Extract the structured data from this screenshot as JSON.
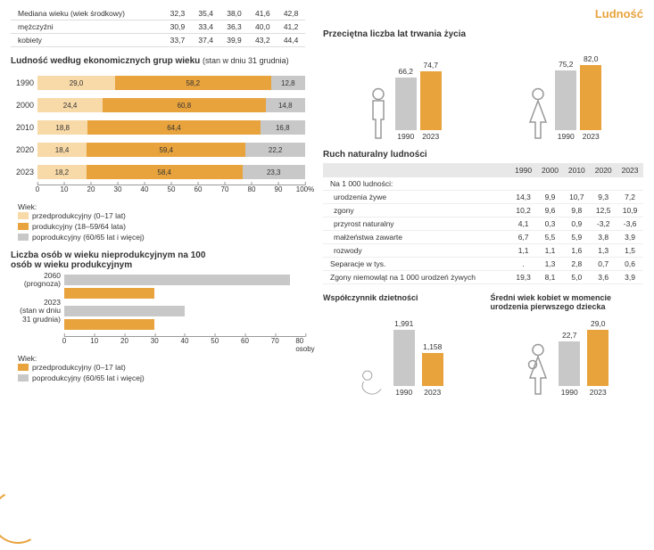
{
  "colors": {
    "orange": "#e8a33d",
    "light_orange": "#f8d9a8",
    "grey": "#c8c8c8",
    "dark_grey": "#999999",
    "text": "#333333"
  },
  "page_title": "Ludność",
  "median_table": {
    "rows": [
      {
        "label": "Mediana wieku (wiek środkowy)",
        "vals": [
          "32,3",
          "35,4",
          "38,0",
          "41,6",
          "42,8"
        ]
      },
      {
        "label": "mężczyźni",
        "vals": [
          "30,9",
          "33,4",
          "36,3",
          "40,0",
          "41,2"
        ]
      },
      {
        "label": "kobiety",
        "vals": [
          "33,7",
          "37,4",
          "39,9",
          "43,2",
          "44,4"
        ]
      }
    ]
  },
  "stacked": {
    "title": "Ludność według ekonomicznych grup wieku",
    "subtitle": "(stan w dniu 31 grudnia)",
    "xmax": 100,
    "xtick_step": 10,
    "unit": "%",
    "rows": [
      {
        "year": "1990",
        "a": 29.0,
        "b": 58.2,
        "c": 12.8
      },
      {
        "year": "2000",
        "a": 24.4,
        "b": 60.8,
        "c": 14.8
      },
      {
        "year": "2010",
        "a": 18.8,
        "b": 64.4,
        "c": 16.8
      },
      {
        "year": "2020",
        "a": 18.4,
        "b": 59.4,
        "c": 22.2
      },
      {
        "year": "2023",
        "a": 18.2,
        "b": 58.4,
        "c": 23.3
      }
    ],
    "legend_title": "Wiek:",
    "legend": [
      {
        "label": "przedprodukcyjny (0–17 lat)",
        "color": "#f8d9a8"
      },
      {
        "label": "produkcyjny (18–59/64 lata)",
        "color": "#e8a33d"
      },
      {
        "label": "poprodukcyjny (60/65 lat i więcej)",
        "color": "#c8c8c8"
      }
    ]
  },
  "dependency": {
    "title": "Liczba osób w wieku nieprodukcyjnym na 100 osób w wieku produkcyjnym",
    "xmax": 80,
    "xtick_step": 10,
    "unit": "osoby",
    "groups": [
      {
        "label": "2060 (prognoza)",
        "a": 30,
        "b": 75
      },
      {
        "label": "2023 (stan w dniu 31 grudnia)",
        "a": 30,
        "b": 40
      }
    ],
    "legend_title": "Wiek:",
    "legend": [
      {
        "label": "przedprodukcyjny (0–17 lat)",
        "color": "#e8a33d"
      },
      {
        "label": "poprodukcyjny (60/65 lat i więcej)",
        "color": "#c8c8c8"
      }
    ]
  },
  "life": {
    "title": "Przeciętna liczba lat trwania życia",
    "groups": [
      {
        "icon": "man",
        "bars": [
          {
            "year": "1990",
            "val": 66.2,
            "color": "#c8c8c8"
          },
          {
            "year": "2023",
            "val": 74.7,
            "color": "#e8a33d"
          }
        ]
      },
      {
        "icon": "woman",
        "bars": [
          {
            "year": "1990",
            "val": 75.2,
            "color": "#c8c8c8"
          },
          {
            "year": "2023",
            "val": 82.0,
            "color": "#e8a33d"
          }
        ]
      }
    ],
    "ymax": 90
  },
  "natural": {
    "title": "Ruch naturalny ludności",
    "years": [
      "1990",
      "2000",
      "2010",
      "2020",
      "2023"
    ],
    "header": "Na 1 000 ludności:",
    "rows": [
      {
        "label": "urodzenia żywe",
        "vals": [
          "14,3",
          "9,9",
          "10,7",
          "9,3",
          "7,2"
        ]
      },
      {
        "label": "zgony",
        "vals": [
          "10,2",
          "9,6",
          "9,8",
          "12,5",
          "10,9"
        ]
      },
      {
        "label": "przyrost naturalny",
        "vals": [
          "4,1",
          "0,3",
          "0,9",
          "-3,2",
          "-3,6"
        ]
      },
      {
        "label": "małżeństwa zawarte",
        "vals": [
          "6,7",
          "5,5",
          "5,9",
          "3,8",
          "3,9"
        ]
      },
      {
        "label": "rozwody",
        "vals": [
          "1,1",
          "1,1",
          "1,6",
          "1,3",
          "1,5"
        ]
      }
    ],
    "extra": [
      {
        "label": "Separacje w tys.",
        "vals": [
          ".",
          "1,3",
          "2,8",
          "0,7",
          "0,6"
        ]
      },
      {
        "label": "Zgony niemowląt na 1 000 urodzeń żywych",
        "vals": [
          "19,3",
          "8,1",
          "5,0",
          "3,6",
          "3,9"
        ]
      }
    ]
  },
  "fertility": {
    "title": "Współczynnik dzietności",
    "bars": [
      {
        "year": "1990",
        "val": 1.991,
        "label": "1,991",
        "color": "#c8c8c8"
      },
      {
        "year": "2023",
        "val": 1.158,
        "label": "1,158",
        "color": "#e8a33d"
      }
    ],
    "ymax": 2.2,
    "icon": "baby"
  },
  "first_birth": {
    "title": "Średni wiek kobiet w momencie urodzenia pierwszego dziecka",
    "bars": [
      {
        "year": "1990",
        "val": 22.7,
        "label": "22,7",
        "color": "#c8c8c8"
      },
      {
        "year": "2023",
        "val": 29.0,
        "label": "29,0",
        "color": "#e8a33d"
      }
    ],
    "ymax": 32,
    "icon": "mother"
  }
}
